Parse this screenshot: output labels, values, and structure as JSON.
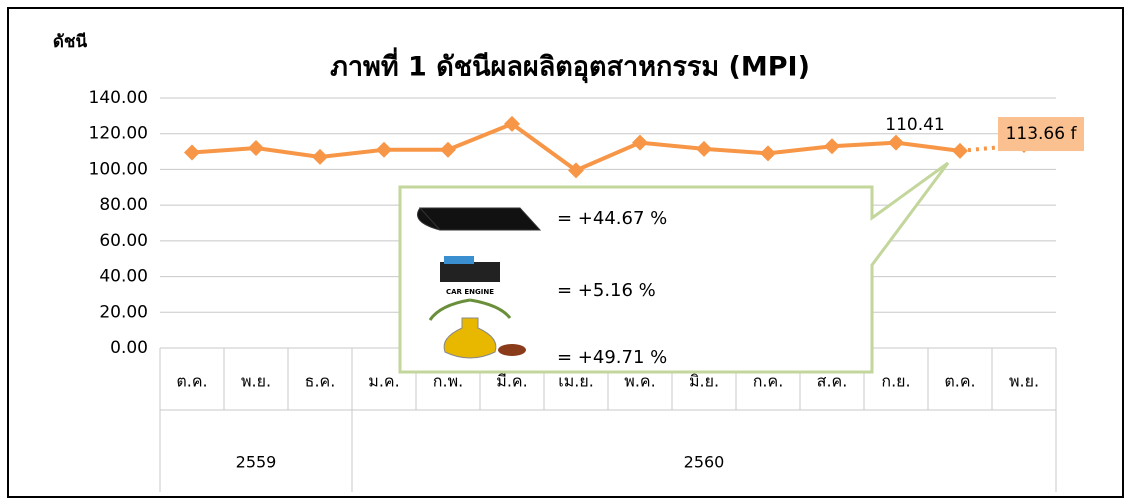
{
  "chart_data": {
    "type": "line",
    "title": "ภาพที่ 1 ดัชนีผลผลิตอุตสาหกรรม (MPI)",
    "y_label": "ดัชนี",
    "categories": [
      "ต.ค.",
      "พ.ย.",
      "ธ.ค.",
      "ม.ค.",
      "ก.พ.",
      "มี.ค.",
      "เม.ย.",
      "พ.ค.",
      "มิ.ย.",
      "ก.ค.",
      "ส.ค.",
      "ก.ย.",
      "ต.ค.",
      "พ.ย."
    ],
    "category_groups": [
      {
        "label": "2559",
        "span": 3
      },
      {
        "label": "2560",
        "span": 11
      }
    ],
    "values": [
      109.5,
      112,
      107,
      111,
      111,
      125.5,
      99.5,
      115,
      111.5,
      109,
      113,
      115,
      110.41,
      113.66
    ],
    "value_labels": [
      null,
      null,
      null,
      null,
      null,
      null,
      null,
      null,
      null,
      null,
      null,
      null,
      "110.41",
      "113.66 f"
    ],
    "color": "#f79646",
    "last_segment_dotted": true,
    "ylim": [
      0,
      140
    ],
    "yticks": [
      {
        "value": 0,
        "label": "0.00"
      },
      {
        "value": 20,
        "label": "20.00"
      },
      {
        "value": 40,
        "label": "40.00"
      },
      {
        "value": 60,
        "label": "60.00"
      },
      {
        "value": 80,
        "label": "80.00"
      },
      {
        "value": 100,
        "label": "100.00"
      },
      {
        "value": 120,
        "label": "120.00"
      },
      {
        "value": 140,
        "label": "140.00"
      }
    ],
    "grid": true,
    "callouts": [
      "= +44.67 %",
      "= +5.16 %",
      "= +49.71 %"
    ]
  }
}
